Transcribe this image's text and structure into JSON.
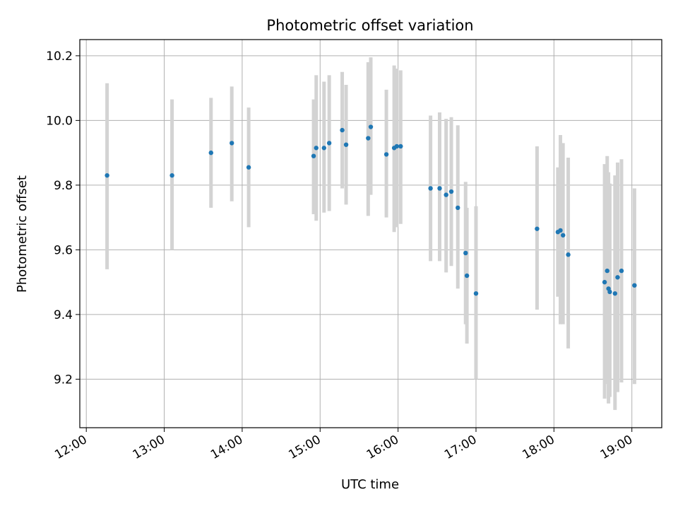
{
  "chart_data": {
    "type": "scatter",
    "title": "Photometric offset variation",
    "xlabel": "UTC time",
    "ylabel": "Photometric offset",
    "x_unit": "UTC time (HH:MM)",
    "xlim": [
      "11:55",
      "19:23"
    ],
    "ylim": [
      9.05,
      10.25
    ],
    "x_ticks": [
      "12:00",
      "13:00",
      "14:00",
      "15:00",
      "16:00",
      "17:00",
      "18:00",
      "19:00"
    ],
    "y_ticks": [
      "9.2",
      "9.4",
      "9.6",
      "9.8",
      "10.0",
      "10.2"
    ],
    "grid": true,
    "legend": false,
    "errorbar_color": "#d3d3d3",
    "marker_color": "#1f77b4",
    "points": [
      {
        "x": "12:16",
        "y": 9.83,
        "low": 9.54,
        "high": 10.115
      },
      {
        "x": "13:06",
        "y": 9.83,
        "low": 9.6,
        "high": 10.065
      },
      {
        "x": "13:36",
        "y": 9.9,
        "low": 9.73,
        "high": 10.07
      },
      {
        "x": "13:52",
        "y": 9.93,
        "low": 9.75,
        "high": 10.105
      },
      {
        "x": "14:05",
        "y": 9.855,
        "low": 9.67,
        "high": 10.04
      },
      {
        "x": "14:55",
        "y": 9.89,
        "low": 9.71,
        "high": 10.065
      },
      {
        "x": "14:57",
        "y": 9.915,
        "low": 9.69,
        "high": 10.14
      },
      {
        "x": "15:03",
        "y": 9.915,
        "low": 9.715,
        "high": 10.12
      },
      {
        "x": "15:07",
        "y": 9.93,
        "low": 9.72,
        "high": 10.14
      },
      {
        "x": "15:17",
        "y": 9.97,
        "low": 9.79,
        "high": 10.15
      },
      {
        "x": "15:20",
        "y": 9.925,
        "low": 9.74,
        "high": 10.11
      },
      {
        "x": "15:37",
        "y": 9.945,
        "low": 9.705,
        "high": 10.18
      },
      {
        "x": "15:39",
        "y": 9.98,
        "low": 9.77,
        "high": 10.195
      },
      {
        "x": "15:51",
        "y": 9.895,
        "low": 9.7,
        "high": 10.095
      },
      {
        "x": "15:57",
        "y": 9.915,
        "low": 9.655,
        "high": 10.17
      },
      {
        "x": "15:59",
        "y": 9.92,
        "low": 9.67,
        "high": 10.16
      },
      {
        "x": "16:02",
        "y": 9.92,
        "low": 9.68,
        "high": 10.155
      },
      {
        "x": "16:25",
        "y": 9.79,
        "low": 9.565,
        "high": 10.015
      },
      {
        "x": "16:32",
        "y": 9.79,
        "low": 9.565,
        "high": 10.025
      },
      {
        "x": "16:37",
        "y": 9.77,
        "low": 9.53,
        "high": 10.005
      },
      {
        "x": "16:41",
        "y": 9.78,
        "low": 9.55,
        "high": 10.01
      },
      {
        "x": "16:46",
        "y": 9.73,
        "low": 9.48,
        "high": 9.985
      },
      {
        "x": "16:52",
        "y": 9.59,
        "low": 9.37,
        "high": 9.81
      },
      {
        "x": "16:53",
        "y": 9.52,
        "low": 9.31,
        "high": 9.73
      },
      {
        "x": "17:00",
        "y": 9.465,
        "low": 9.2,
        "high": 9.735
      },
      {
        "x": "17:47",
        "y": 9.665,
        "low": 9.415,
        "high": 9.92
      },
      {
        "x": "18:03",
        "y": 9.655,
        "low": 9.455,
        "high": 9.855
      },
      {
        "x": "18:05",
        "y": 9.66,
        "low": 9.37,
        "high": 9.955
      },
      {
        "x": "18:07",
        "y": 9.645,
        "low": 9.37,
        "high": 9.93
      },
      {
        "x": "18:11",
        "y": 9.585,
        "low": 9.295,
        "high": 9.885
      },
      {
        "x": "18:39",
        "y": 9.5,
        "low": 9.14,
        "high": 9.865
      },
      {
        "x": "18:41",
        "y": 9.535,
        "low": 9.185,
        "high": 9.89
      },
      {
        "x": "18:42",
        "y": 9.48,
        "low": 9.125,
        "high": 9.84
      },
      {
        "x": "18:43",
        "y": 9.47,
        "low": 9.145,
        "high": 9.805
      },
      {
        "x": "18:47",
        "y": 9.465,
        "low": 9.105,
        "high": 9.83
      },
      {
        "x": "18:49",
        "y": 9.515,
        "low": 9.16,
        "high": 9.87
      },
      {
        "x": "18:52",
        "y": 9.535,
        "low": 9.19,
        "high": 9.88
      },
      {
        "x": "19:02",
        "y": 9.49,
        "low": 9.185,
        "high": 9.79
      }
    ]
  }
}
